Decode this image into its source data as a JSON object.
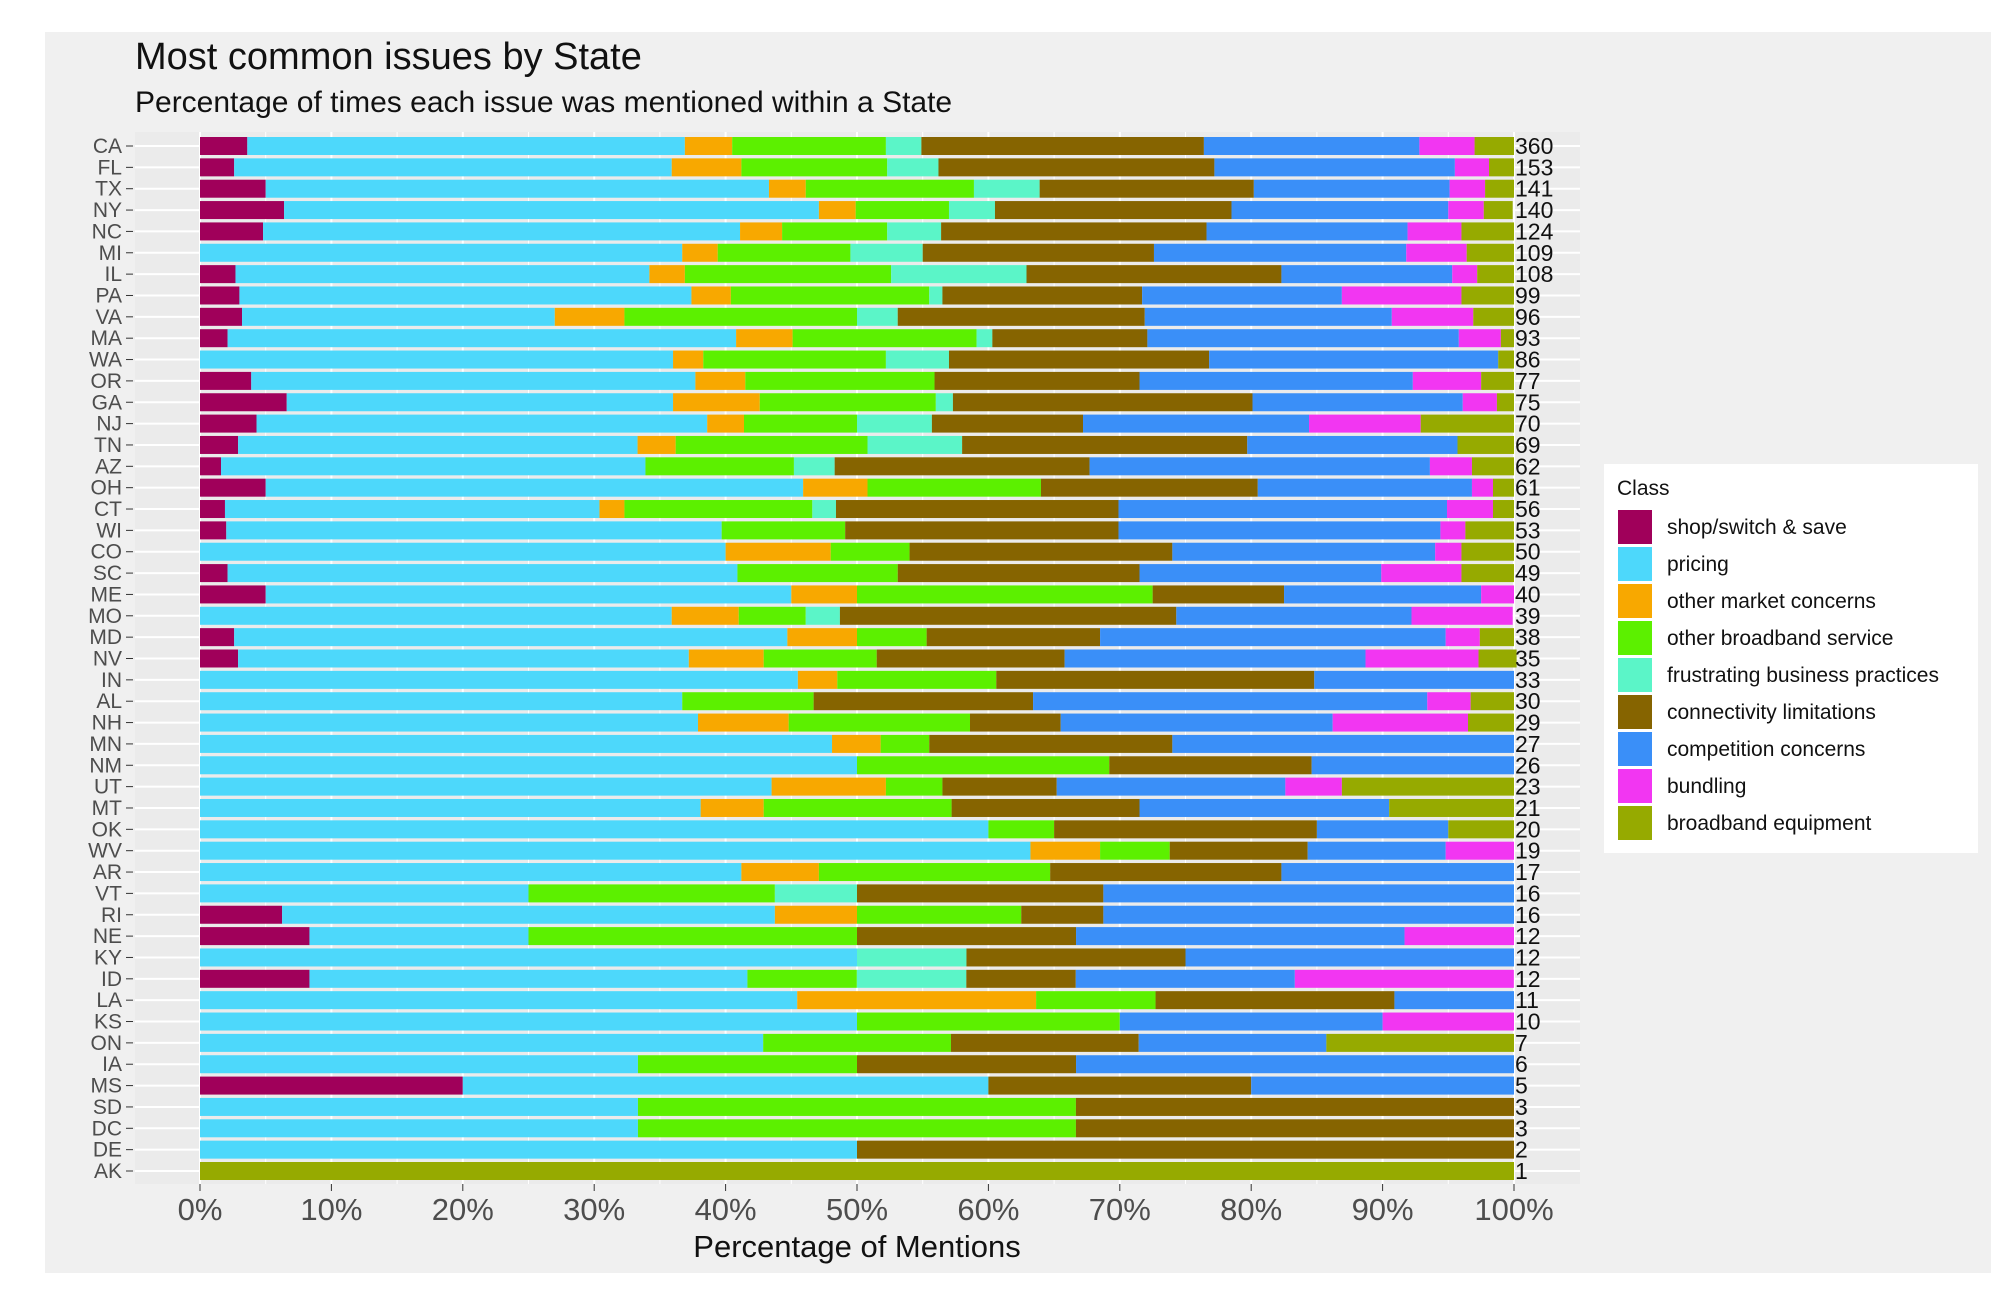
{
  "chart_data": {
    "type": "bar",
    "orientation": "horizontal",
    "stacked": "percent",
    "title": "Most common issues by State",
    "subtitle": "Percentage of times each issue was mentioned within a State",
    "xlabel": "Percentage of Mentions",
    "ylabel": "",
    "xlim": [
      0,
      100
    ],
    "x_ticks": [
      "0%",
      "10%",
      "20%",
      "30%",
      "40%",
      "50%",
      "60%",
      "70%",
      "80%",
      "90%",
      "100%"
    ],
    "legend_title": "Class",
    "legend_position": "right",
    "series": [
      {
        "name": "shop/switch & save",
        "color": "#a0005a"
      },
      {
        "name": "pricing",
        "color": "#4dd8fb"
      },
      {
        "name": "other market concerns",
        "color": "#f8a800"
      },
      {
        "name": "other broadband service",
        "color": "#5cf000"
      },
      {
        "name": "frustrating business practices",
        "color": "#5bf5c8"
      },
      {
        "name": "connectivity limitations",
        "color": "#866400"
      },
      {
        "name": "competition concerns",
        "color": "#3a8ff8"
      },
      {
        "name": "bundling",
        "color": "#f236f2"
      },
      {
        "name": "broadband equipment",
        "color": "#96aa00"
      }
    ],
    "rows": [
      {
        "state": "CA",
        "count": "360",
        "values": [
          3.6,
          33.3,
          3.6,
          11.7,
          2.7,
          21.5,
          16.4,
          4.2,
          3.0
        ]
      },
      {
        "state": "FL",
        "count": "153",
        "values": [
          2.6,
          33.3,
          5.3,
          11.1,
          3.9,
          21.0,
          18.3,
          2.6,
          1.9
        ]
      },
      {
        "state": "TX",
        "count": "141",
        "values": [
          5.0,
          38.3,
          2.8,
          12.8,
          5.0,
          16.3,
          14.9,
          2.7,
          2.2
        ]
      },
      {
        "state": "NY",
        "count": "140",
        "values": [
          6.4,
          40.7,
          2.8,
          7.1,
          3.5,
          18.0,
          16.5,
          2.7,
          2.2
        ]
      },
      {
        "state": "NC",
        "count": "124",
        "values": [
          4.8,
          36.3,
          3.2,
          8.0,
          4.1,
          20.2,
          15.3,
          4.1,
          4.0
        ]
      },
      {
        "state": "MI",
        "count": "109",
        "values": [
          0,
          36.7,
          2.7,
          10.1,
          5.5,
          17.6,
          19.2,
          4.6,
          3.6
        ]
      },
      {
        "state": "IL",
        "count": "108",
        "values": [
          2.7,
          31.5,
          2.7,
          15.7,
          10.3,
          19.4,
          13.0,
          1.9,
          2.8
        ]
      },
      {
        "state": "PA",
        "count": "99",
        "values": [
          3.0,
          34.4,
          3.0,
          15.1,
          1.0,
          15.2,
          15.2,
          9.1,
          4.0
        ]
      },
      {
        "state": "VA",
        "count": "96",
        "values": [
          3.2,
          23.8,
          5.3,
          17.7,
          3.1,
          18.8,
          18.8,
          6.2,
          3.1
        ]
      },
      {
        "state": "MA",
        "count": "93",
        "values": [
          2.1,
          38.7,
          4.3,
          14.0,
          1.2,
          11.8,
          23.7,
          3.2,
          1.0
        ]
      },
      {
        "state": "WA",
        "count": "86",
        "values": [
          0,
          36.0,
          2.3,
          13.9,
          4.8,
          19.8,
          22.0,
          0,
          1.2
        ]
      },
      {
        "state": "OR",
        "count": "77",
        "values": [
          3.9,
          33.8,
          3.8,
          14.4,
          0,
          15.6,
          20.8,
          5.2,
          2.5
        ]
      },
      {
        "state": "GA",
        "count": "75",
        "values": [
          6.6,
          29.4,
          6.6,
          13.4,
          1.3,
          22.8,
          16.0,
          2.6,
          1.3
        ]
      },
      {
        "state": "NJ",
        "count": "70",
        "values": [
          4.3,
          34.3,
          2.8,
          8.6,
          5.7,
          11.5,
          17.2,
          8.5,
          7.1
        ]
      },
      {
        "state": "TN",
        "count": "69",
        "values": [
          2.9,
          30.4,
          2.9,
          14.6,
          7.2,
          21.7,
          16.0,
          0,
          4.3
        ]
      },
      {
        "state": "AZ",
        "count": "62",
        "values": [
          1.6,
          32.3,
          0,
          11.3,
          3.1,
          19.4,
          25.9,
          3.2,
          3.2
        ]
      },
      {
        "state": "OH",
        "count": "61",
        "values": [
          5.0,
          40.9,
          4.9,
          13.2,
          0,
          16.5,
          16.3,
          1.6,
          1.6
        ]
      },
      {
        "state": "CT",
        "count": "56",
        "values": [
          1.9,
          28.5,
          1.9,
          14.3,
          1.8,
          21.5,
          25.0,
          3.5,
          1.6
        ]
      },
      {
        "state": "WI",
        "count": "53",
        "values": [
          2.0,
          37.7,
          0,
          9.4,
          0,
          20.8,
          24.5,
          1.9,
          3.7
        ]
      },
      {
        "state": "CO",
        "count": "50",
        "values": [
          0,
          40,
          8,
          6,
          0,
          20,
          20,
          2,
          4
        ]
      },
      {
        "state": "SC",
        "count": "49",
        "values": [
          2.1,
          38.8,
          0,
          12.2,
          0,
          18.4,
          18.4,
          6.1,
          4.0
        ]
      },
      {
        "state": "ME",
        "count": "40",
        "values": [
          5,
          40,
          5,
          22.5,
          0,
          10,
          15,
          2.5,
          0
        ]
      },
      {
        "state": "MO",
        "count": "39",
        "values": [
          0,
          35.9,
          5.1,
          5.1,
          2.6,
          25.6,
          17.9,
          7.7,
          0
        ]
      },
      {
        "state": "MD",
        "count": "38",
        "values": [
          2.6,
          42.1,
          5.3,
          5.3,
          0,
          13.2,
          26.3,
          2.6,
          2.6
        ]
      },
      {
        "state": "NV",
        "count": "35",
        "values": [
          2.9,
          34.3,
          5.7,
          8.6,
          0,
          14.3,
          22.9,
          8.6,
          2.9
        ]
      },
      {
        "state": "IN",
        "count": "33",
        "values": [
          0,
          45.5,
          3.0,
          12.1,
          0,
          24.2,
          15.2,
          0,
          0
        ]
      },
      {
        "state": "AL",
        "count": "30",
        "values": [
          0,
          36.7,
          0,
          10,
          0,
          16.7,
          30,
          3.3,
          3.3
        ]
      },
      {
        "state": "NH",
        "count": "29",
        "values": [
          0,
          37.9,
          6.9,
          13.8,
          0,
          6.9,
          20.7,
          10.3,
          3.5
        ]
      },
      {
        "state": "MN",
        "count": "27",
        "values": [
          0,
          48.1,
          3.7,
          3.7,
          0,
          18.5,
          26.0,
          0,
          0
        ]
      },
      {
        "state": "NM",
        "count": "26",
        "values": [
          0,
          50,
          0,
          19.2,
          0,
          15.4,
          15.4,
          0,
          0
        ]
      },
      {
        "state": "UT",
        "count": "23",
        "values": [
          0,
          43.5,
          8.7,
          4.3,
          0,
          8.7,
          17.4,
          4.3,
          13.1
        ]
      },
      {
        "state": "MT",
        "count": "21",
        "values": [
          0,
          38.1,
          4.8,
          14.3,
          0,
          14.3,
          19.0,
          0,
          9.5
        ]
      },
      {
        "state": "OK",
        "count": "20",
        "values": [
          0,
          60,
          0,
          5,
          0,
          20,
          10,
          0,
          5
        ]
      },
      {
        "state": "WV",
        "count": "19",
        "values": [
          0,
          63.2,
          5.3,
          5.3,
          0,
          10.5,
          10.5,
          5.2,
          0
        ]
      },
      {
        "state": "AR",
        "count": "17",
        "values": [
          0,
          41.2,
          5.9,
          17.6,
          0,
          17.6,
          17.7,
          0,
          0
        ]
      },
      {
        "state": "VT",
        "count": "16",
        "values": [
          0,
          25,
          0,
          18.75,
          6.25,
          18.75,
          31.25,
          0,
          0
        ]
      },
      {
        "state": "RI",
        "count": "16",
        "values": [
          6.25,
          37.5,
          6.25,
          12.5,
          0,
          6.25,
          31.25,
          0,
          0
        ]
      },
      {
        "state": "NE",
        "count": "12",
        "values": [
          8.33,
          16.67,
          0,
          25,
          0,
          16.67,
          25,
          8.33,
          0
        ]
      },
      {
        "state": "KY",
        "count": "12",
        "values": [
          0,
          50,
          0,
          0,
          8.33,
          16.67,
          25,
          0,
          0
        ]
      },
      {
        "state": "ID",
        "count": "12",
        "values": [
          8.33,
          33.33,
          0,
          8.33,
          8.33,
          8.33,
          16.67,
          16.67,
          0
        ]
      },
      {
        "state": "LA",
        "count": "11",
        "values": [
          0,
          45.45,
          18.18,
          9.09,
          0,
          18.18,
          9.1,
          0,
          0
        ]
      },
      {
        "state": "KS",
        "count": "10",
        "values": [
          0,
          50,
          0,
          20,
          0,
          0,
          20,
          10,
          0
        ]
      },
      {
        "state": "ON",
        "count": "7",
        "values": [
          0,
          42.86,
          0,
          14.29,
          0,
          14.29,
          14.28,
          0,
          14.28
        ]
      },
      {
        "state": "IA",
        "count": "6",
        "values": [
          0,
          33.33,
          0,
          16.67,
          0,
          16.67,
          33.33,
          0,
          0
        ]
      },
      {
        "state": "MS",
        "count": "5",
        "values": [
          20,
          40,
          0,
          0,
          0,
          20,
          20,
          0,
          0
        ]
      },
      {
        "state": "SD",
        "count": "3",
        "values": [
          0,
          33.33,
          0,
          33.33,
          0,
          33.34,
          0,
          0,
          0
        ]
      },
      {
        "state": "DC",
        "count": "3",
        "values": [
          0,
          33.33,
          0,
          33.33,
          0,
          33.34,
          0,
          0,
          0
        ]
      },
      {
        "state": "DE",
        "count": "2",
        "values": [
          0,
          50,
          0,
          0,
          0,
          50,
          0,
          0,
          0
        ]
      },
      {
        "state": "AK",
        "count": "1",
        "values": [
          0,
          0,
          0,
          0,
          0,
          0,
          0,
          0,
          100
        ]
      }
    ]
  }
}
